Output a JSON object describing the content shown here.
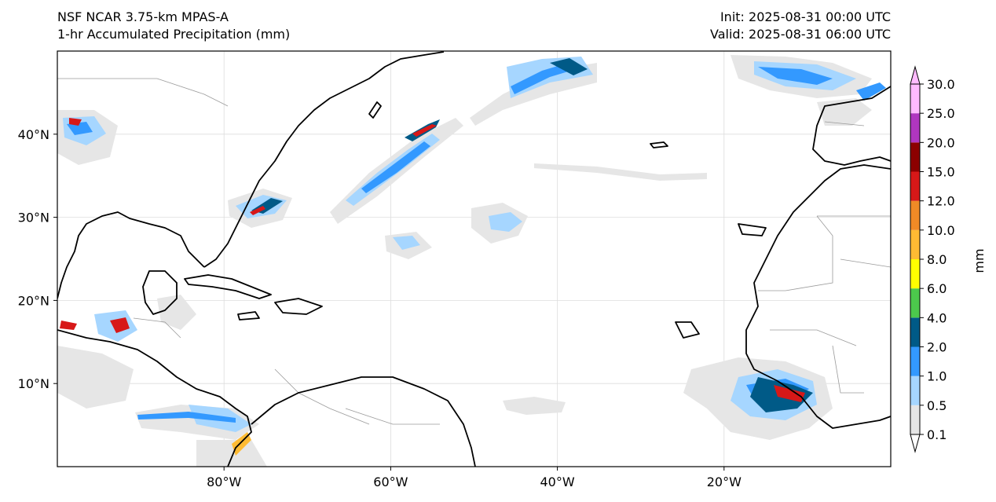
{
  "header": {
    "model": "NSF NCAR 3.75-km MPAS-A",
    "field": "1-hr Accumulated Precipitation (mm)",
    "init": "Init: 2025-08-31 00:00 UTC",
    "valid": "Valid: 2025-08-31 06:00 UTC"
  },
  "map": {
    "projection": "PlateCarree",
    "lon_range": [
      -100,
      0
    ],
    "lat_range": [
      0,
      50
    ],
    "lon_ticks": [
      {
        "value": -80,
        "label": "80°W"
      },
      {
        "value": -60,
        "label": "60°W"
      },
      {
        "value": -40,
        "label": "40°W"
      },
      {
        "value": -20,
        "label": "20°W"
      }
    ],
    "lat_ticks": [
      {
        "value": 40,
        "label": "40°N"
      },
      {
        "value": 30,
        "label": "30°N"
      },
      {
        "value": 20,
        "label": "20°N"
      },
      {
        "value": 10,
        "label": "10°N"
      }
    ],
    "coastline_color": "#000000",
    "border_color": "#9a9a9a",
    "gridline_color": "#dddddd"
  },
  "colorbar": {
    "label": "mm",
    "extend": "both",
    "levels": [
      "0.1",
      "0.5",
      "1.0",
      "2.0",
      "4.0",
      "6.0",
      "8.0",
      "10.0",
      "12.0",
      "15.0",
      "20.0",
      "25.0",
      "30.0"
    ],
    "colors": [
      "#e6e6e6",
      "#a6d6ff",
      "#3399ff",
      "#005a87",
      "#4cc94c",
      "#ffff00",
      "#ffbb33",
      "#f08a26",
      "#d71818",
      "#8c0000",
      "#b036c0",
      "#ffbbff"
    ],
    "under_color": "#ffffff",
    "over_color": "#ffbbff"
  },
  "precip_colors": {
    "trace": "#e6e6e6",
    "light": "#a6d6ff",
    "moderate": "#3399ff",
    "heavy": "#005a87",
    "very_heavy": "#d71818"
  }
}
